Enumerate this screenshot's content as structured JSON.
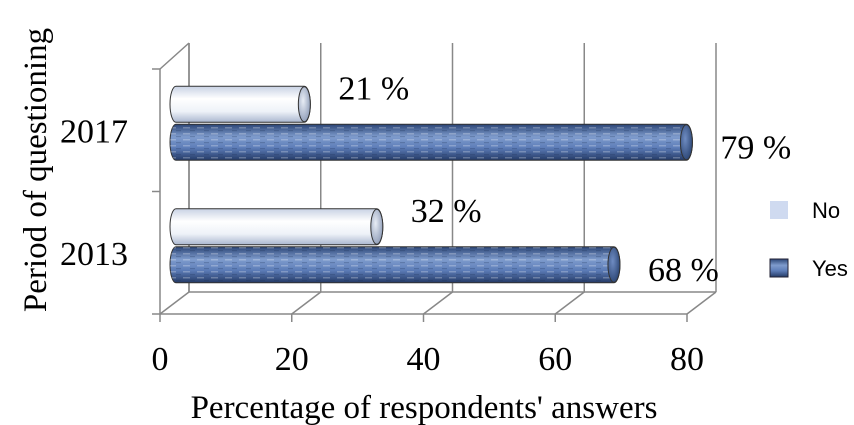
{
  "chart_data": {
    "type": "bar",
    "orientation": "horizontal",
    "style": "3d-cylinder",
    "categories": [
      "2013",
      "2017"
    ],
    "series": [
      {
        "name": "No",
        "values": [
          32,
          21
        ],
        "labels": [
          "32 %",
          "21 %"
        ],
        "color": "#dfe6f2"
      },
      {
        "name": "Yes",
        "values": [
          68,
          79
        ],
        "labels": [
          "68 %",
          "79 %"
        ],
        "color": "#4f6fa8"
      }
    ],
    "xlabel": "Percentage of respondents' answers",
    "ylabel": "Period of questioning",
    "xlim": [
      0,
      80
    ],
    "xticks": [
      "0",
      "20",
      "40",
      "60",
      "80"
    ],
    "grid": true,
    "legend": "right"
  }
}
